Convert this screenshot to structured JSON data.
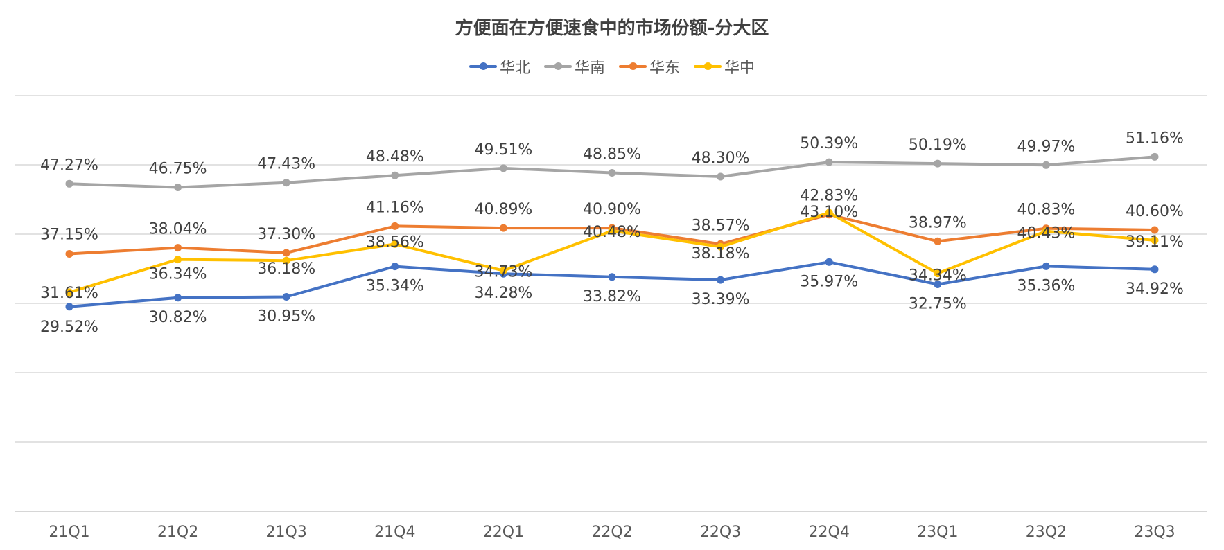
{
  "chart_data": {
    "type": "line",
    "title": "方便面在方便速食中的市场份额-分大区",
    "xlabel": "",
    "ylabel": "",
    "ylim": [
      0,
      60
    ],
    "y_axis_labels_shown": false,
    "grid": true,
    "legend_position": "top",
    "categories": [
      "21Q1",
      "21Q2",
      "21Q3",
      "21Q4",
      "22Q1",
      "22Q2",
      "22Q3",
      "22Q4",
      "23Q1",
      "23Q2",
      "23Q3"
    ],
    "series": [
      {
        "name": "华北",
        "color": "#4472C4",
        "values": [
          29.52,
          30.82,
          30.95,
          35.34,
          34.28,
          33.82,
          33.39,
          35.97,
          32.75,
          35.36,
          34.92
        ],
        "labels": [
          "29.52%",
          "30.82%",
          "30.95%",
          "35.34%",
          "34.28%",
          "33.82%",
          "33.39%",
          "35.97%",
          "32.75%",
          "35.36%",
          "34.92%"
        ]
      },
      {
        "name": "华南",
        "color": "#A5A5A5",
        "values": [
          47.27,
          46.75,
          47.43,
          48.48,
          49.51,
          48.85,
          48.3,
          50.39,
          50.19,
          49.97,
          51.16
        ],
        "labels": [
          "47.27%",
          "46.75%",
          "47.43%",
          "48.48%",
          "49.51%",
          "48.85%",
          "48.30%",
          "50.39%",
          "50.19%",
          "49.97%",
          "51.16%"
        ]
      },
      {
        "name": "华东",
        "color": "#ED7D31",
        "values": [
          37.15,
          38.04,
          37.3,
          41.16,
          40.89,
          40.9,
          38.57,
          42.83,
          38.97,
          40.83,
          40.6
        ],
        "labels": [
          "37.15%",
          "38.04%",
          "37.30%",
          "41.16%",
          "40.89%",
          "40.90%",
          "38.57%",
          "42.83%",
          "38.97%",
          "40.83%",
          "40.60%"
        ]
      },
      {
        "name": "华中",
        "color": "#FFC000",
        "values": [
          31.61,
          36.34,
          36.18,
          38.56,
          34.73,
          40.48,
          38.18,
          43.1,
          34.34,
          40.43,
          39.11
        ],
        "labels": [
          "31.61%",
          "36.34%",
          "36.18%",
          "38.56%",
          "34.73%",
          "40.48%",
          "38.18%",
          "43.10%",
          "34.34%",
          "40.43%",
          "39.11%"
        ]
      }
    ]
  }
}
